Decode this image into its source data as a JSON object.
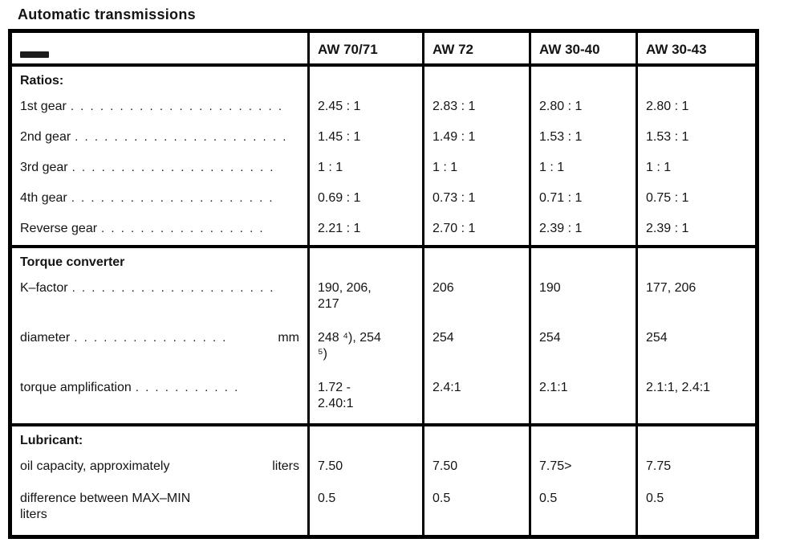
{
  "page_title": "Automatic transmissions",
  "table": {
    "columns": [
      "",
      "AW 70/71",
      "AW 72",
      "AW 30-40",
      "AW 30-43"
    ],
    "sections": [
      {
        "heading": "Ratios:",
        "rows": [
          {
            "label": "1st gear",
            "dots": ". . . . . . . . . . . .   . . . . . . . . . .",
            "unit": "",
            "values": [
              "2.45 : 1",
              "2.83 : 1",
              "2.80 : 1",
              "2.80 : 1"
            ]
          },
          {
            "label": "2nd gear",
            "dots": ". . . . . . . . . . . . . . . . . . . . . .",
            "unit": "",
            "values": [
              "1.45 : 1",
              "1.49 : 1",
              "1.53 : 1",
              "1.53 : 1"
            ]
          },
          {
            "label": "3rd gear",
            "dots": ". . . . . . . . . . . . . . . . . . . . .",
            "unit": "",
            "values": [
              "1 : 1",
              "1 : 1",
              "1 : 1",
              "1 : 1"
            ]
          },
          {
            "label": "4th gear",
            "dots": ". . . . . . . . . . . . . . . . . . . . .",
            "unit": "",
            "values": [
              "0.69 : 1",
              "0.73 : 1",
              "0.71 : 1",
              "0.75 : 1"
            ]
          },
          {
            "label": "Reverse gear",
            "dots": ". . . . . . . . . . . . . . . . .",
            "unit": "",
            "values": [
              "2.21 : 1",
              "2.70 : 1",
              "2.39 : 1",
              "2.39 : 1"
            ]
          }
        ]
      },
      {
        "heading": "Torque converter",
        "rows": [
          {
            "label": "K–factor",
            "dots": ". . . . . . . . . . . . . . . . . . . . .",
            "unit": "",
            "values": [
              "190, 206,\n217",
              "206",
              "190",
              "177, 206"
            ]
          },
          {
            "label": "diameter",
            "dots": ". . . . . . . . . . . . . . . .",
            "unit": "mm",
            "values": [
              "248 ⁴), 254\n⁵)",
              "254",
              "254",
              "254"
            ]
          },
          {
            "label": "torque amplification",
            "dots": ". . . . . . . . . . .",
            "unit": "",
            "values": [
              "1.72 -\n2.40:1",
              "2.4:1",
              "2.1:1",
              "2.1:1, 2.4:1"
            ]
          }
        ]
      },
      {
        "heading": "Lubricant:",
        "rows": [
          {
            "label": "oil capacity, approximately",
            "dots": "",
            "unit": "liters",
            "values": [
              "7.50",
              "7.50",
              "7.75>",
              "7.75"
            ]
          },
          {
            "label": "difference between MAX–MIN\nliters",
            "dots": "",
            "unit": "",
            "values": [
              "0.5",
              "0.5",
              "0.5",
              "0.5"
            ]
          }
        ]
      }
    ]
  }
}
